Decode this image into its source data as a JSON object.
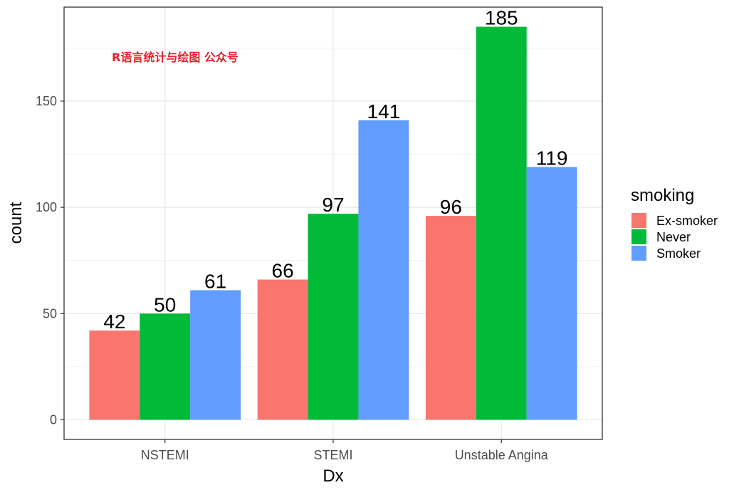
{
  "watermark": "R语言统计与绘图 公众号",
  "chart_data": {
    "type": "bar",
    "xlabel": "Dx",
    "ylabel": "count",
    "categories": [
      "NSTEMI",
      "STEMI",
      "Unstable Angina"
    ],
    "series": [
      {
        "name": "Ex-smoker",
        "color": "#F8766D",
        "values": [
          42,
          66,
          96
        ]
      },
      {
        "name": "Never",
        "color": "#00BA38",
        "values": [
          50,
          97,
          185
        ]
      },
      {
        "name": "Smoker",
        "color": "#619CFF",
        "values": [
          61,
          141,
          119
        ]
      }
    ],
    "ylim": [
      -9.25,
      194.25
    ],
    "yticks": [
      0,
      50,
      100,
      150
    ],
    "legend": {
      "title": "smoking",
      "position": "right"
    },
    "grid": true,
    "theme": "bw"
  }
}
